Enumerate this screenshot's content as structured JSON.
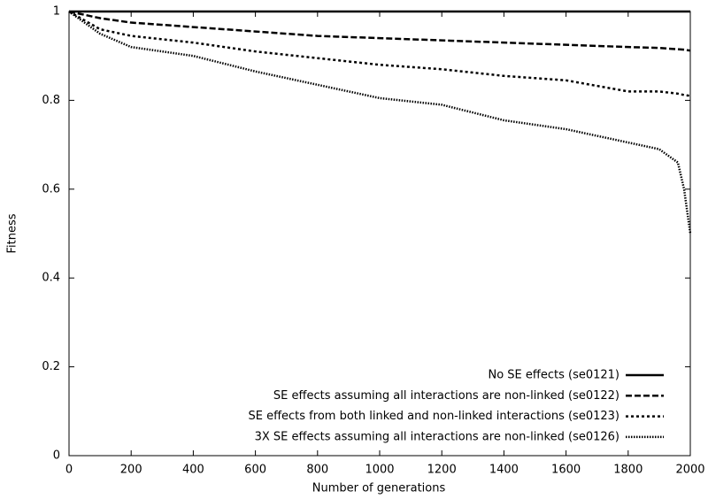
{
  "chart_data": {
    "type": "line",
    "xlabel": "Number of generations",
    "ylabel": "Fitness",
    "x": [
      0,
      100,
      200,
      400,
      600,
      800,
      1000,
      1200,
      1400,
      1600,
      1800,
      1900,
      1960,
      1980,
      2000
    ],
    "series": [
      {
        "name": "No SE effects (se0121)",
        "color": "#000000",
        "dash": "none",
        "values": [
          1,
          1,
          1,
          1,
          1,
          1,
          1,
          1,
          1,
          1,
          1,
          1,
          1,
          1,
          1
        ]
      },
      {
        "name": "SE effects assuming all interactions are non-linked (se0122)",
        "color": "#000000",
        "dash": "7,3",
        "values": [
          1,
          0.985,
          0.975,
          0.965,
          0.955,
          0.945,
          0.94,
          0.935,
          0.93,
          0.925,
          0.92,
          0.918,
          0.915,
          0.914,
          0.912
        ]
      },
      {
        "name": "SE effects from both linked and non-linked interactions (se0123)",
        "color": "#000000",
        "dash": "3,3",
        "values": [
          1,
          0.96,
          0.945,
          0.93,
          0.91,
          0.895,
          0.88,
          0.87,
          0.855,
          0.845,
          0.82,
          0.82,
          0.815,
          0.812,
          0.81
        ]
      },
      {
        "name": "3X SE effects assuming all interactions are non-linked (se0126)",
        "color": "#000000",
        "dash": "1.5,1.5",
        "values": [
          1,
          0.95,
          0.92,
          0.9,
          0.865,
          0.835,
          0.805,
          0.79,
          0.755,
          0.735,
          0.705,
          0.69,
          0.66,
          0.6,
          0.5
        ]
      }
    ],
    "xlim": [
      0,
      2000
    ],
    "xticks": [
      0,
      200,
      400,
      600,
      800,
      1000,
      1200,
      1400,
      1600,
      1800,
      2000
    ],
    "ylim": [
      0,
      1
    ],
    "yticks": [
      0,
      0.2,
      0.4,
      0.6,
      0.8,
      1
    ],
    "legend": "lower right"
  }
}
